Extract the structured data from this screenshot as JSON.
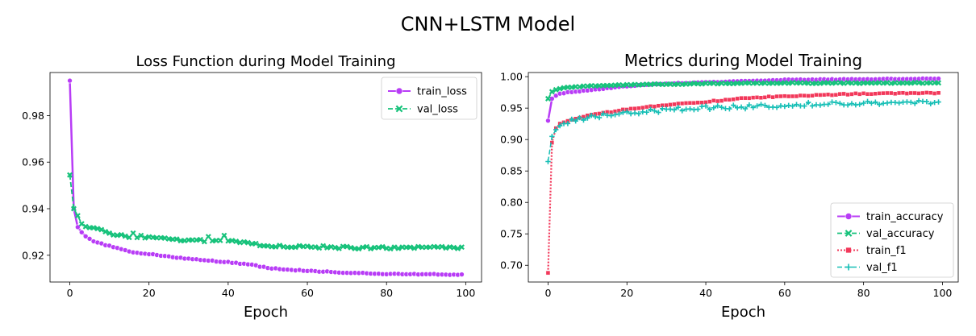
{
  "suptitle": "CNN+LSTM Model",
  "chart_data": [
    {
      "type": "line",
      "title": "Loss Function during Model Training",
      "xlabel": "Epoch",
      "ylabel": "",
      "xlim": [
        -5,
        104
      ],
      "ylim": [
        0.9085,
        0.9985
      ],
      "xticks": [
        0,
        20,
        40,
        60,
        80,
        100
      ],
      "yticks": [
        0.92,
        0.94,
        0.96,
        0.98
      ],
      "legend": "top-right",
      "grid": false,
      "series": [
        {
          "name": "train_loss",
          "color": "#b83cf6",
          "marker": "circle",
          "line": "solid",
          "linewidth": 2.5,
          "y0": 0.995,
          "y1": 0.94,
          "knots": [
            [
              2,
              0.932
            ],
            [
              3,
              0.93
            ],
            [
              4,
              0.928
            ],
            [
              6,
              0.9258
            ],
            [
              10,
              0.924
            ],
            [
              15,
              0.9215
            ],
            [
              20,
              0.9205
            ],
            [
              30,
              0.9185
            ],
            [
              40,
              0.917
            ],
            [
              45,
              0.9162
            ],
            [
              50,
              0.9145
            ],
            [
              60,
              0.9133
            ],
            [
              70,
              0.9125
            ],
            [
              80,
              0.912
            ],
            [
              99,
              0.9117
            ]
          ],
          "noise": 0.0002,
          "spikes": []
        },
        {
          "name": "val_loss",
          "color": "#17c27b",
          "marker": "x",
          "line": "dashed",
          "linewidth": 1.8,
          "y0": 0.9545,
          "y1": 0.94,
          "knots": [
            [
              2,
              0.9365
            ],
            [
              3,
              0.934
            ],
            [
              4,
              0.9325
            ],
            [
              6,
              0.9315
            ],
            [
              10,
              0.9295
            ],
            [
              15,
              0.928
            ],
            [
              20,
              0.9275
            ],
            [
              30,
              0.9265
            ],
            [
              40,
              0.926
            ],
            [
              48,
              0.9245
            ],
            [
              52,
              0.924
            ],
            [
              60,
              0.9237
            ],
            [
              70,
              0.9233
            ],
            [
              80,
              0.9232
            ],
            [
              99,
              0.9233
            ]
          ],
          "noise": 0.0005,
          "spikes": [
            [
              6,
              0.9318
            ],
            [
              8,
              0.931
            ],
            [
              16,
              0.9295
            ],
            [
              18,
              0.9285
            ],
            [
              35,
              0.928
            ],
            [
              39,
              0.9285
            ]
          ]
        }
      ]
    },
    {
      "type": "line",
      "title": "Metrics during Model Training",
      "xlabel": "Epoch",
      "ylabel": "",
      "xlim": [
        -5,
        104
      ],
      "ylim": [
        0.6734,
        1.0066
      ],
      "xticks": [
        0,
        20,
        40,
        60,
        80,
        100
      ],
      "yticks": [
        0.7,
        0.75,
        0.8,
        0.85,
        0.9,
        0.95,
        1.0
      ],
      "legend": "bottom-right",
      "grid": false,
      "series": [
        {
          "name": "train_accuracy",
          "color": "#b83cf6",
          "marker": "circle",
          "line": "solid",
          "linewidth": 2.5,
          "y0": 0.93,
          "y1": 0.965,
          "knots": [
            [
              2,
              0.97
            ],
            [
              3,
              0.973
            ],
            [
              5,
              0.975
            ],
            [
              10,
              0.978
            ],
            [
              20,
              0.985
            ],
            [
              30,
              0.989
            ],
            [
              40,
              0.991
            ],
            [
              60,
              0.995
            ],
            [
              80,
              0.996
            ],
            [
              99,
              0.997
            ]
          ],
          "noise": 0.0005,
          "spikes": []
        },
        {
          "name": "val_accuracy",
          "color": "#17c27b",
          "marker": "x",
          "line": "dashed",
          "linewidth": 1.8,
          "y0": 0.965,
          "y1": 0.976,
          "knots": [
            [
              2,
              0.979
            ],
            [
              3,
              0.981
            ],
            [
              5,
              0.983
            ],
            [
              10,
              0.985
            ],
            [
              20,
              0.987
            ],
            [
              40,
              0.989
            ],
            [
              60,
              0.99
            ],
            [
              99,
              0.99
            ]
          ],
          "noise": 0.0007,
          "spikes": []
        },
        {
          "name": "train_f1",
          "color": "#f2385a",
          "marker": "square",
          "line": "dotted",
          "linewidth": 2.2,
          "y0": 0.688,
          "y1": 0.895,
          "knots": [
            [
              2,
              0.918
            ],
            [
              3,
              0.925
            ],
            [
              5,
              0.93
            ],
            [
              10,
              0.938
            ],
            [
              20,
              0.948
            ],
            [
              30,
              0.955
            ],
            [
              40,
              0.96
            ],
            [
              50,
              0.966
            ],
            [
              60,
              0.969
            ],
            [
              70,
              0.971
            ],
            [
              80,
              0.973
            ],
            [
              99,
              0.974
            ]
          ],
          "noise": 0.0008,
          "spikes": []
        },
        {
          "name": "val_f1",
          "color": "#17bfb6",
          "marker": "plus",
          "line": "dashed",
          "linewidth": 1.5,
          "y0": 0.865,
          "y1": 0.905,
          "knots": [
            [
              2,
              0.918
            ],
            [
              3,
              0.922
            ],
            [
              5,
              0.928
            ],
            [
              10,
              0.935
            ],
            [
              20,
              0.942
            ],
            [
              30,
              0.947
            ],
            [
              40,
              0.95
            ],
            [
              50,
              0.952
            ],
            [
              60,
              0.955
            ],
            [
              70,
              0.956
            ],
            [
              80,
              0.958
            ],
            [
              99,
              0.959
            ]
          ],
          "noise": 0.0035,
          "spikes": []
        }
      ]
    }
  ]
}
